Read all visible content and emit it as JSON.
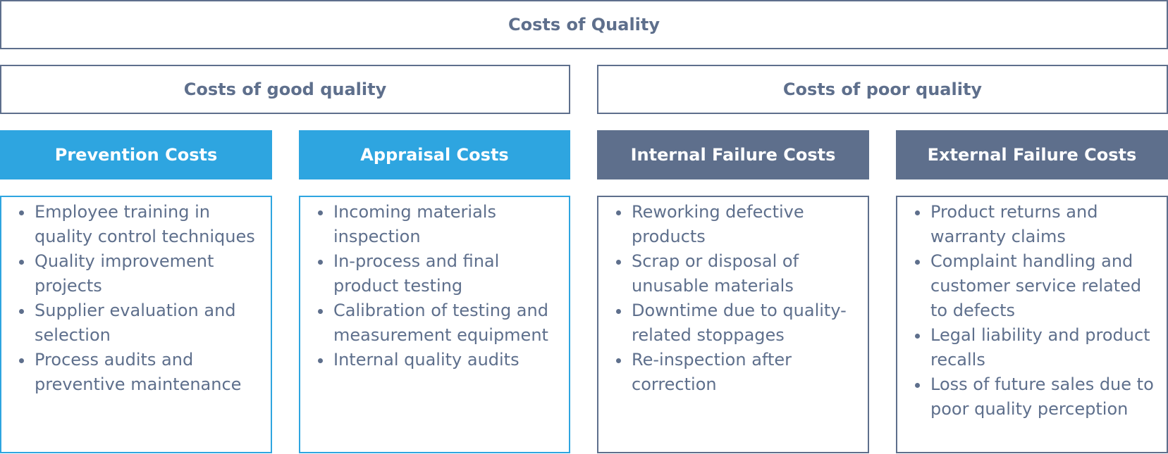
{
  "title": "Costs of Quality",
  "groups": [
    {
      "label": "Costs of good quality"
    },
    {
      "label": "Costs of poor quality"
    }
  ],
  "categories": [
    {
      "label": "Prevention Costs",
      "color": "#2ea5e0",
      "items": [
        "Employee training in quality control techniques",
        "Quality improvement projects",
        "Supplier evaluation and selection",
        "Process audits and preventive maintenance"
      ]
    },
    {
      "label": "Appraisal Costs",
      "color": "#2ea5e0",
      "items": [
        "Incoming materials inspection",
        "In-process and final product testing",
        "Calibration of testing and measurement equipment",
        "Internal quality audits"
      ]
    },
    {
      "label": "Internal Failure Costs",
      "color": "#5e6f8c",
      "items": [
        "Reworking defective products",
        "Scrap or disposal of unusable materials",
        "Downtime due to quality-related stoppages",
        "Re-inspection after correction"
      ]
    },
    {
      "label": "External Failure Costs",
      "color": "#5e6f8c",
      "items": [
        "Product returns and warranty claims",
        "Complaint handling and customer service related to defects",
        "Legal liability and product recalls",
        "Loss of future sales due to poor quality perception"
      ]
    }
  ]
}
